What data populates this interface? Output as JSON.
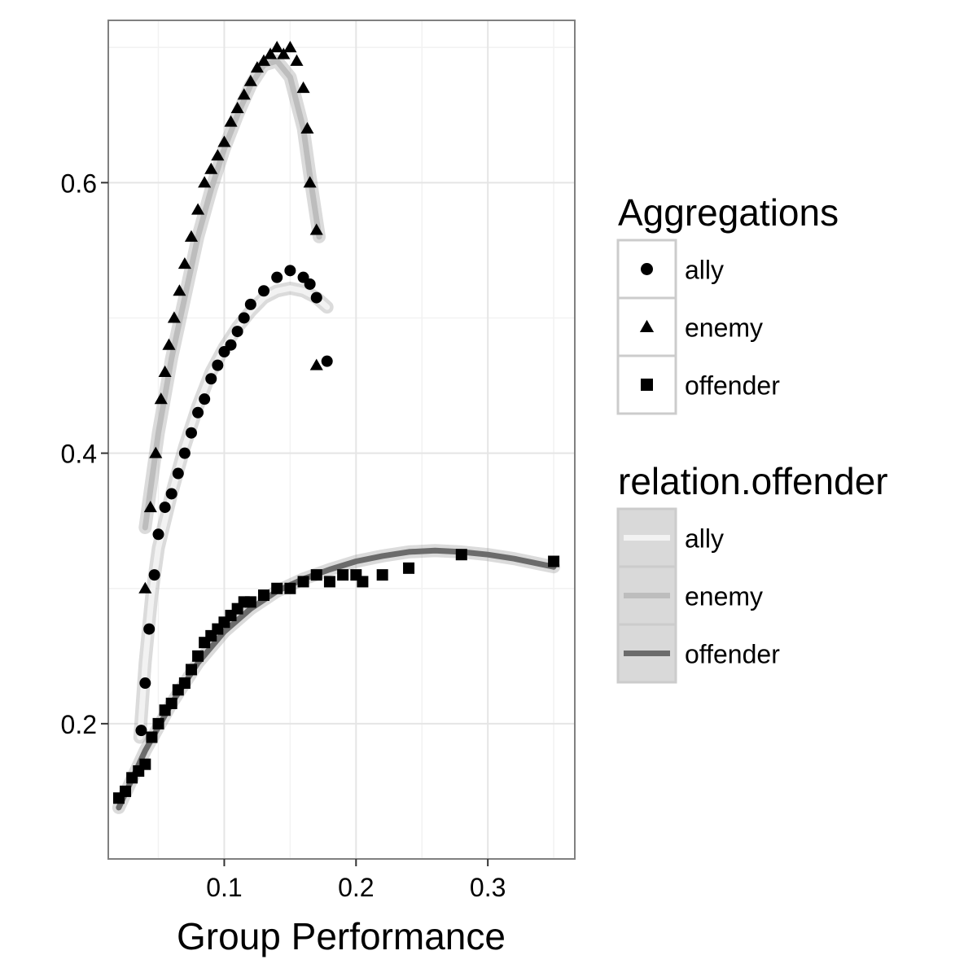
{
  "chart_data": {
    "type": "scatter",
    "title": "",
    "xlabel": "Group Performance",
    "ylabel": "",
    "xlim": [
      0.012,
      0.366
    ],
    "ylim": [
      0.1,
      0.72
    ],
    "x_ticks": [
      {
        "value": 0.1,
        "label": "0.1"
      },
      {
        "value": 0.2,
        "label": "0.2"
      },
      {
        "value": 0.3,
        "label": "0.3"
      }
    ],
    "y_ticks": [
      {
        "value": 0.2,
        "label": "0.2"
      },
      {
        "value": 0.4,
        "label": "0.4"
      },
      {
        "value": 0.6,
        "label": "0.6"
      }
    ],
    "grid": true,
    "legends": [
      {
        "title": "Aggregations",
        "type": "shape",
        "entries": [
          {
            "label": "ally",
            "shape": "circle"
          },
          {
            "label": "enemy",
            "shape": "triangle"
          },
          {
            "label": "offender",
            "shape": "square"
          }
        ]
      },
      {
        "title": "relation.offender",
        "type": "line",
        "entries": [
          {
            "label": "ally",
            "color": "#f2f2f2"
          },
          {
            "label": "enemy",
            "color": "#bdbdbd"
          },
          {
            "label": "offender",
            "color": "#6b6b6b"
          }
        ]
      }
    ],
    "series": [
      {
        "name": "enemy",
        "shape": "triangle",
        "points": [
          [
            0.04,
            0.3
          ],
          [
            0.044,
            0.36
          ],
          [
            0.048,
            0.4
          ],
          [
            0.052,
            0.44
          ],
          [
            0.055,
            0.46
          ],
          [
            0.058,
            0.48
          ],
          [
            0.062,
            0.5
          ],
          [
            0.066,
            0.52
          ],
          [
            0.07,
            0.54
          ],
          [
            0.075,
            0.56
          ],
          [
            0.08,
            0.58
          ],
          [
            0.085,
            0.6
          ],
          [
            0.09,
            0.61
          ],
          [
            0.095,
            0.62
          ],
          [
            0.1,
            0.63
          ],
          [
            0.105,
            0.645
          ],
          [
            0.11,
            0.655
          ],
          [
            0.115,
            0.665
          ],
          [
            0.12,
            0.675
          ],
          [
            0.125,
            0.685
          ],
          [
            0.13,
            0.69
          ],
          [
            0.135,
            0.695
          ],
          [
            0.14,
            0.7
          ],
          [
            0.145,
            0.695
          ],
          [
            0.15,
            0.7
          ],
          [
            0.155,
            0.69
          ],
          [
            0.16,
            0.67
          ],
          [
            0.163,
            0.64
          ],
          [
            0.165,
            0.6
          ],
          [
            0.17,
            0.565
          ],
          [
            0.17,
            0.465
          ]
        ],
        "fit": {
          "color": "#bdbdbd",
          "points": [
            [
              0.04,
              0.345
            ],
            [
              0.05,
              0.415
            ],
            [
              0.06,
              0.47
            ],
            [
              0.07,
              0.515
            ],
            [
              0.08,
              0.56
            ],
            [
              0.09,
              0.595
            ],
            [
              0.1,
              0.625
            ],
            [
              0.11,
              0.65
            ],
            [
              0.12,
              0.672
            ],
            [
              0.13,
              0.687
            ],
            [
              0.14,
              0.69
            ],
            [
              0.15,
              0.678
            ],
            [
              0.16,
              0.64
            ],
            [
              0.165,
              0.605
            ],
            [
              0.172,
              0.56
            ]
          ]
        }
      },
      {
        "name": "ally",
        "shape": "circle",
        "points": [
          [
            0.037,
            0.195
          ],
          [
            0.04,
            0.23
          ],
          [
            0.043,
            0.27
          ],
          [
            0.047,
            0.31
          ],
          [
            0.05,
            0.34
          ],
          [
            0.055,
            0.36
          ],
          [
            0.06,
            0.37
          ],
          [
            0.065,
            0.385
          ],
          [
            0.07,
            0.4
          ],
          [
            0.075,
            0.415
          ],
          [
            0.08,
            0.43
          ],
          [
            0.085,
            0.44
          ],
          [
            0.09,
            0.455
          ],
          [
            0.095,
            0.465
          ],
          [
            0.1,
            0.475
          ],
          [
            0.105,
            0.48
          ],
          [
            0.11,
            0.49
          ],
          [
            0.115,
            0.5
          ],
          [
            0.12,
            0.51
          ],
          [
            0.13,
            0.52
          ],
          [
            0.14,
            0.53
          ],
          [
            0.15,
            0.535
          ],
          [
            0.16,
            0.53
          ],
          [
            0.165,
            0.525
          ],
          [
            0.17,
            0.515
          ],
          [
            0.178,
            0.468
          ]
        ],
        "fit": {
          "color": "#f2f2f2",
          "points": [
            [
              0.036,
              0.19
            ],
            [
              0.04,
              0.245
            ],
            [
              0.045,
              0.295
            ],
            [
              0.05,
              0.33
            ],
            [
              0.06,
              0.37
            ],
            [
              0.07,
              0.405
            ],
            [
              0.08,
              0.435
            ],
            [
              0.09,
              0.46
            ],
            [
              0.1,
              0.478
            ],
            [
              0.11,
              0.493
            ],
            [
              0.12,
              0.505
            ],
            [
              0.13,
              0.515
            ],
            [
              0.14,
              0.52
            ],
            [
              0.15,
              0.522
            ],
            [
              0.16,
              0.52
            ],
            [
              0.17,
              0.515
            ],
            [
              0.178,
              0.508
            ]
          ]
        }
      },
      {
        "name": "offender",
        "shape": "square",
        "points": [
          [
            0.02,
            0.145
          ],
          [
            0.025,
            0.15
          ],
          [
            0.03,
            0.16
          ],
          [
            0.035,
            0.165
          ],
          [
            0.04,
            0.17
          ],
          [
            0.045,
            0.19
          ],
          [
            0.05,
            0.2
          ],
          [
            0.055,
            0.21
          ],
          [
            0.06,
            0.215
          ],
          [
            0.065,
            0.225
          ],
          [
            0.07,
            0.23
          ],
          [
            0.075,
            0.24
          ],
          [
            0.08,
            0.25
          ],
          [
            0.085,
            0.26
          ],
          [
            0.09,
            0.265
          ],
          [
            0.095,
            0.27
          ],
          [
            0.1,
            0.275
          ],
          [
            0.105,
            0.28
          ],
          [
            0.11,
            0.285
          ],
          [
            0.115,
            0.29
          ],
          [
            0.12,
            0.29
          ],
          [
            0.13,
            0.295
          ],
          [
            0.14,
            0.3
          ],
          [
            0.15,
            0.3
          ],
          [
            0.16,
            0.305
          ],
          [
            0.17,
            0.31
          ],
          [
            0.18,
            0.305
          ],
          [
            0.19,
            0.31
          ],
          [
            0.2,
            0.31
          ],
          [
            0.205,
            0.305
          ],
          [
            0.22,
            0.31
          ],
          [
            0.24,
            0.315
          ],
          [
            0.28,
            0.325
          ],
          [
            0.35,
            0.32
          ]
        ],
        "fit": {
          "color": "#6b6b6b",
          "points": [
            [
              0.02,
              0.138
            ],
            [
              0.04,
              0.18
            ],
            [
              0.06,
              0.215
            ],
            [
              0.08,
              0.245
            ],
            [
              0.1,
              0.268
            ],
            [
              0.12,
              0.285
            ],
            [
              0.14,
              0.298
            ],
            [
              0.16,
              0.307
            ],
            [
              0.18,
              0.314
            ],
            [
              0.2,
              0.32
            ],
            [
              0.22,
              0.324
            ],
            [
              0.24,
              0.327
            ],
            [
              0.26,
              0.328
            ],
            [
              0.28,
              0.327
            ],
            [
              0.3,
              0.325
            ],
            [
              0.32,
              0.322
            ],
            [
              0.35,
              0.316
            ]
          ]
        }
      }
    ]
  }
}
